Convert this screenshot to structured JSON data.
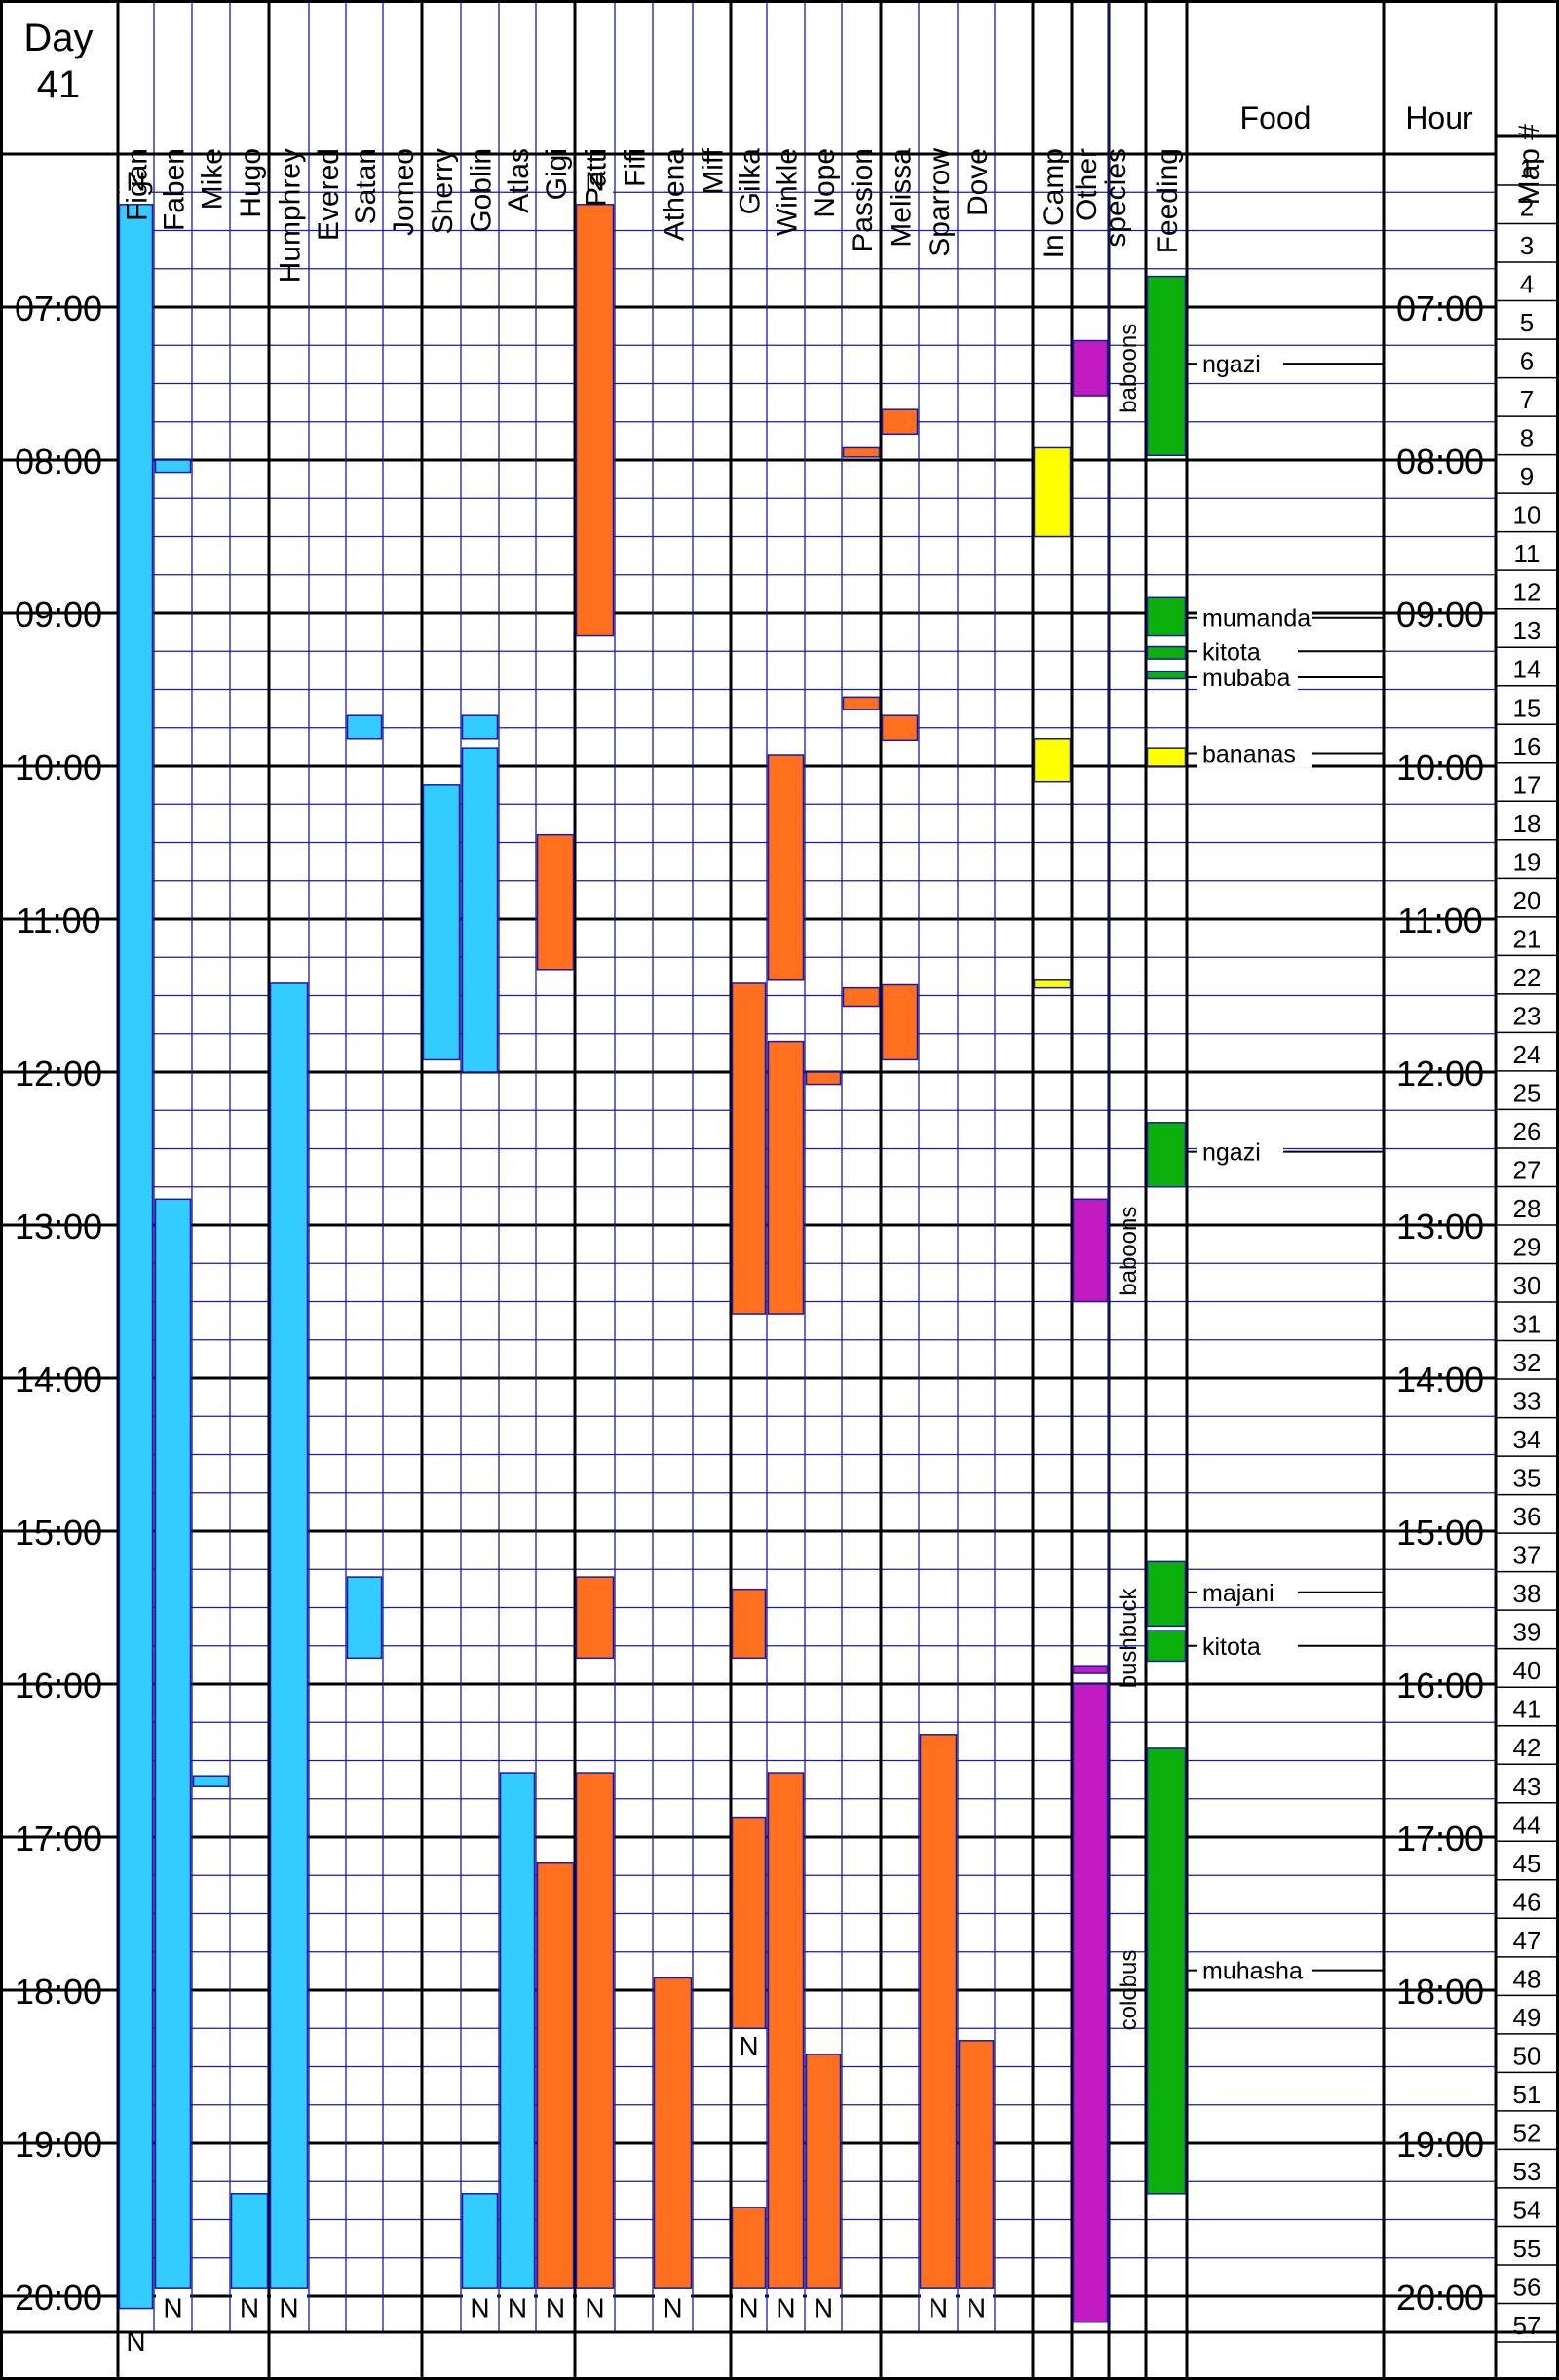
{
  "chart_data": {
    "type": "timeline",
    "title": "Day 41",
    "columns": [
      "Figan",
      "Faben",
      "Mike",
      "Hugo",
      "Humphrey",
      "Evered",
      "Satan",
      "Jomeo",
      "Sherry",
      "Goblin",
      "Atlas",
      "Gigi",
      "Patti",
      "Fifi",
      "Athena",
      "Miff",
      "Gilka",
      "Winkle",
      "Nope",
      "Passion",
      "Melissa",
      "Sparrow",
      "Dove",
      "In Camp",
      "Other species",
      "Feeding",
      "Food",
      "Hour",
      "Map #"
    ],
    "other_species_header": [
      "Other",
      "species"
    ],
    "hours": [
      "07:00",
      "08:00",
      "09:00",
      "10:00",
      "11:00",
      "12:00",
      "13:00",
      "14:00",
      "15:00",
      "16:00",
      "17:00",
      "18:00",
      "19:00",
      "20:00"
    ],
    "map_numbers": [
      "1",
      "2",
      "3",
      "4",
      "5",
      "6",
      "7",
      "8",
      "9",
      "10",
      "11",
      "12",
      "13",
      "14",
      "15",
      "16",
      "17",
      "18",
      "19",
      "20",
      "21",
      "22",
      "23",
      "24",
      "25",
      "26",
      "27",
      "28",
      "29",
      "30",
      "31",
      "32",
      "33",
      "34",
      "35",
      "36",
      "37",
      "38",
      "39",
      "40",
      "41",
      "42",
      "43",
      "44",
      "45",
      "46",
      "47",
      "48",
      "49",
      "50",
      "51",
      "52",
      "53",
      "54",
      "55",
      "56",
      "57"
    ],
    "time_range": [
      6.0,
      20.5
    ],
    "colors": {
      "male": "#33CCFF",
      "female": "#FF6F1E",
      "camp": "#FFFF00",
      "species": "#C21BC2",
      "feeding": "#0CB00C"
    },
    "bars": [
      {
        "col": 0,
        "start": 6.33,
        "end": 20.08,
        "kind": "male"
      },
      {
        "col": 1,
        "start": 8.0,
        "end": 8.08,
        "kind": "male"
      },
      {
        "col": 1,
        "start": 12.83,
        "end": 19.95,
        "kind": "male"
      },
      {
        "col": 2,
        "start": 16.6,
        "end": 16.67,
        "kind": "male"
      },
      {
        "col": 3,
        "start": 19.33,
        "end": 19.95,
        "kind": "male"
      },
      {
        "col": 4,
        "start": 11.42,
        "end": 19.95,
        "kind": "male"
      },
      {
        "col": 6,
        "start": 9.67,
        "end": 9.82,
        "kind": "male"
      },
      {
        "col": 6,
        "start": 15.3,
        "end": 15.83,
        "kind": "male"
      },
      {
        "col": 8,
        "start": 10.12,
        "end": 11.92,
        "kind": "male"
      },
      {
        "col": 9,
        "start": 9.67,
        "end": 9.82,
        "kind": "male"
      },
      {
        "col": 9,
        "start": 9.88,
        "end": 12.0,
        "kind": "male"
      },
      {
        "col": 9,
        "start": 19.33,
        "end": 19.95,
        "kind": "male"
      },
      {
        "col": 10,
        "start": 16.58,
        "end": 19.95,
        "kind": "male"
      },
      {
        "col": 11,
        "start": 10.45,
        "end": 11.33,
        "kind": "female"
      },
      {
        "col": 11,
        "start": 17.17,
        "end": 19.95,
        "kind": "female"
      },
      {
        "col": 12,
        "start": 6.33,
        "end": 9.15,
        "kind": "female"
      },
      {
        "col": 12,
        "start": 15.3,
        "end": 15.83,
        "kind": "female"
      },
      {
        "col": 12,
        "start": 16.58,
        "end": 19.95,
        "kind": "female"
      },
      {
        "col": 14,
        "start": 17.92,
        "end": 19.95,
        "kind": "female"
      },
      {
        "col": 16,
        "start": 11.42,
        "end": 13.58,
        "kind": "female"
      },
      {
        "col": 16,
        "start": 15.38,
        "end": 15.83,
        "kind": "female"
      },
      {
        "col": 16,
        "start": 16.87,
        "end": 18.25,
        "kind": "female"
      },
      {
        "col": 16,
        "start": 19.42,
        "end": 19.95,
        "kind": "female"
      },
      {
        "col": 17,
        "start": 9.93,
        "end": 11.4,
        "kind": "female"
      },
      {
        "col": 17,
        "start": 11.8,
        "end": 13.58,
        "kind": "female"
      },
      {
        "col": 17,
        "start": 16.58,
        "end": 19.95,
        "kind": "female"
      },
      {
        "col": 18,
        "start": 12.0,
        "end": 12.08,
        "kind": "female"
      },
      {
        "col": 18,
        "start": 18.42,
        "end": 19.95,
        "kind": "female"
      },
      {
        "col": 19,
        "start": 7.92,
        "end": 7.98,
        "kind": "female"
      },
      {
        "col": 19,
        "start": 9.55,
        "end": 9.63,
        "kind": "female"
      },
      {
        "col": 19,
        "start": 11.45,
        "end": 11.57,
        "kind": "female"
      },
      {
        "col": 20,
        "start": 7.67,
        "end": 7.83,
        "kind": "female"
      },
      {
        "col": 20,
        "start": 9.67,
        "end": 9.83,
        "kind": "female"
      },
      {
        "col": 20,
        "start": 11.43,
        "end": 11.92,
        "kind": "female"
      },
      {
        "col": 21,
        "start": 16.33,
        "end": 19.95,
        "kind": "female"
      },
      {
        "col": 22,
        "start": 18.33,
        "end": 19.95,
        "kind": "female"
      },
      {
        "col": 23,
        "start": 7.92,
        "end": 8.5,
        "kind": "camp"
      },
      {
        "col": 23,
        "start": 9.82,
        "end": 10.1,
        "kind": "camp"
      },
      {
        "col": 23,
        "start": 11.4,
        "end": 11.45,
        "kind": "camp"
      },
      {
        "col": 24,
        "start": 7.22,
        "end": 7.58,
        "kind": "species"
      },
      {
        "col": 24,
        "start": 12.83,
        "end": 13.5,
        "kind": "species"
      },
      {
        "col": 24,
        "start": 15.88,
        "end": 15.93,
        "kind": "species"
      },
      {
        "col": 24,
        "start": 16.0,
        "end": 20.17,
        "kind": "species"
      },
      {
        "col": 25,
        "start": 6.8,
        "end": 7.97,
        "kind": "feeding"
      },
      {
        "col": 25,
        "start": 8.9,
        "end": 9.15,
        "kind": "feeding"
      },
      {
        "col": 25,
        "start": 9.22,
        "end": 9.3,
        "kind": "feeding"
      },
      {
        "col": 25,
        "start": 9.38,
        "end": 9.43,
        "kind": "feeding"
      },
      {
        "col": 25,
        "start": 9.88,
        "end": 10.0,
        "kind": "camp"
      },
      {
        "col": 25,
        "start": 12.33,
        "end": 12.75,
        "kind": "feeding"
      },
      {
        "col": 25,
        "start": 15.2,
        "end": 15.62,
        "kind": "feeding"
      },
      {
        "col": 25,
        "start": 15.65,
        "end": 15.85,
        "kind": "feeding"
      },
      {
        "col": 25,
        "start": 16.42,
        "end": 19.33,
        "kind": "feeding"
      }
    ],
    "nest_marks": [
      {
        "col": 0,
        "time": 6.18
      },
      {
        "col": 12,
        "time": 6.18
      },
      {
        "col": 1,
        "time": 20.08
      },
      {
        "col": 3,
        "time": 20.08
      },
      {
        "col": 4,
        "time": 20.08
      },
      {
        "col": 9,
        "time": 20.08
      },
      {
        "col": 10,
        "time": 20.08
      },
      {
        "col": 11,
        "time": 20.08
      },
      {
        "col": 12,
        "time": 20.08
      },
      {
        "col": 14,
        "time": 20.08
      },
      {
        "col": 16,
        "time": 20.08
      },
      {
        "col": 17,
        "time": 20.08
      },
      {
        "col": 18,
        "time": 20.08
      },
      {
        "col": 21,
        "time": 20.08
      },
      {
        "col": 22,
        "time": 20.08
      },
      {
        "col": 16,
        "time": 18.37
      },
      {
        "col": 0,
        "time": 20.3
      }
    ],
    "nest_label": "N",
    "species_labels": [
      {
        "text": "baboons",
        "time": 7.4
      },
      {
        "text": "baboons",
        "time": 13.17
      },
      {
        "text": "bushbuck",
        "time": 15.7
      },
      {
        "text": "colobus",
        "time": 18.0
      }
    ],
    "food_labels": [
      {
        "text": "ngazi",
        "time": 7.37
      },
      {
        "text": "mumanda",
        "time": 9.03
      },
      {
        "text": "kitota",
        "time": 9.25
      },
      {
        "text": "mubaba",
        "time": 9.42
      },
      {
        "text": "bananas",
        "time": 9.92
      },
      {
        "text": "ngazi",
        "time": 12.52
      },
      {
        "text": "majani",
        "time": 15.4
      },
      {
        "text": "kitota",
        "time": 15.75
      },
      {
        "text": "muhasha",
        "time": 17.87
      }
    ]
  }
}
